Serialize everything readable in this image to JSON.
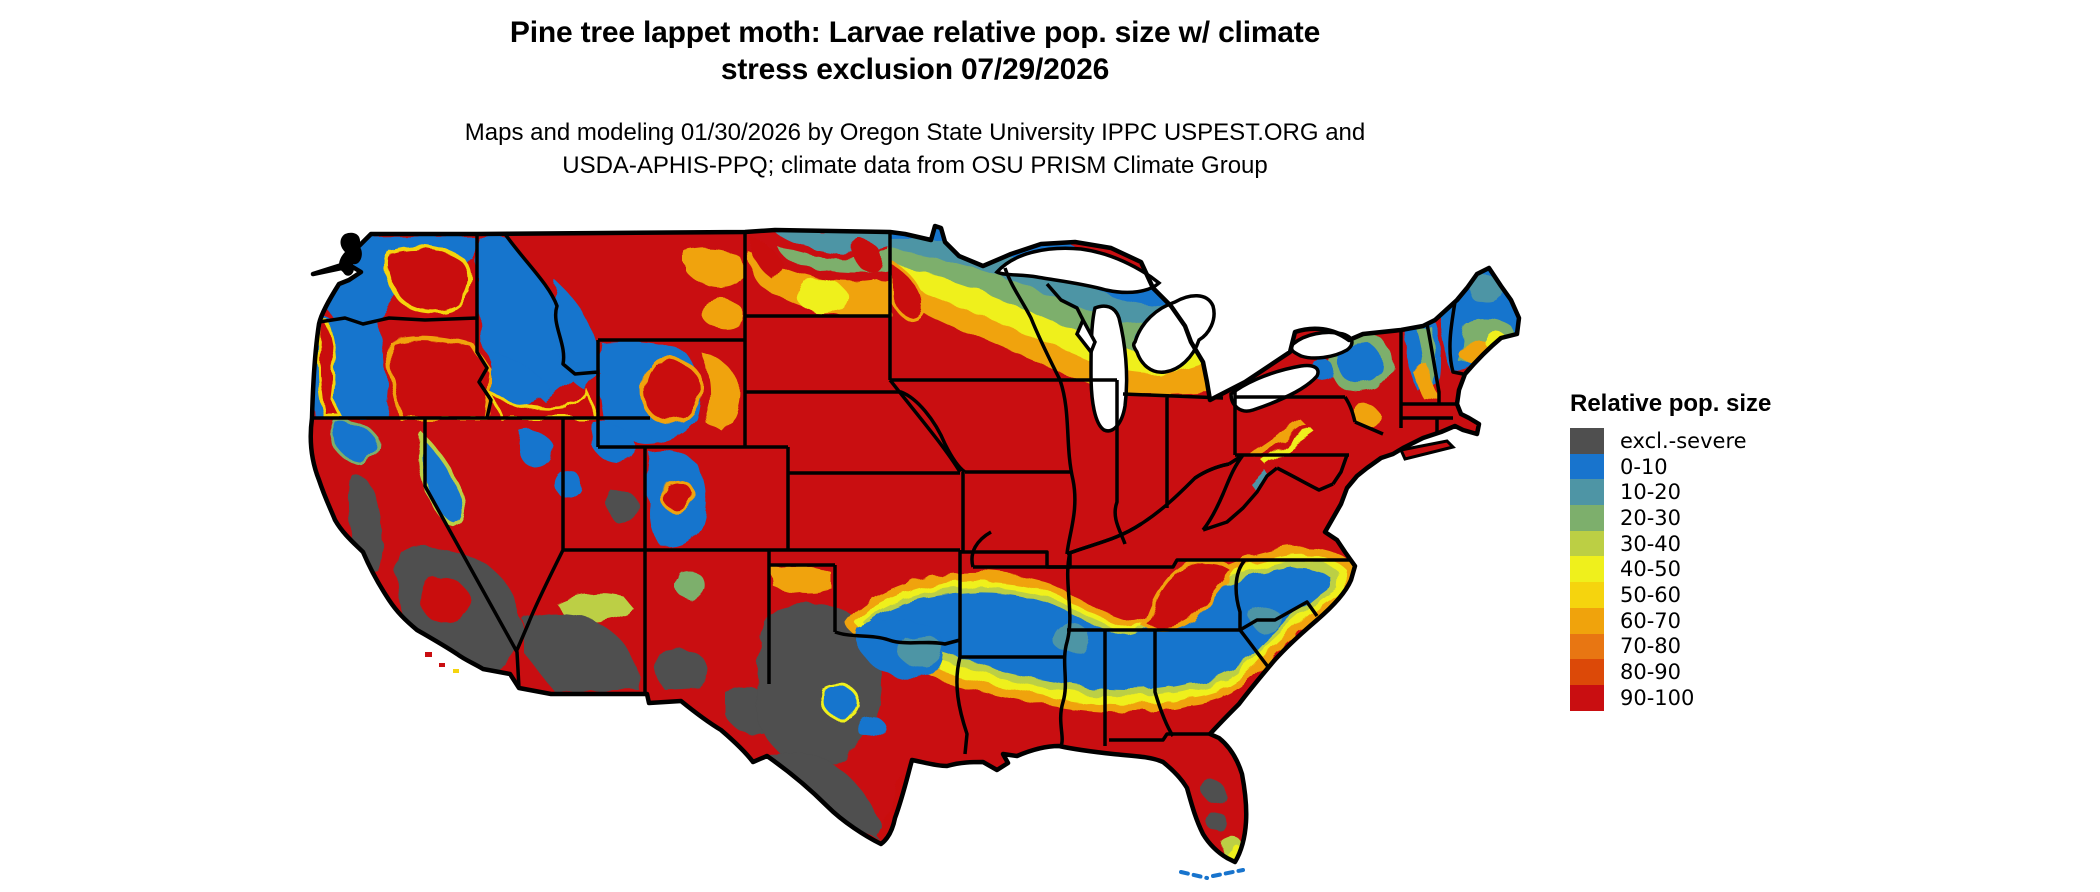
{
  "header": {
    "title_line1": "Pine tree lappet moth: Larvae relative pop. size w/ climate",
    "title_line2": "stress exclusion 07/29/2026",
    "subtitle_line1": "Maps and modeling 01/30/2026 by Oregon State University IPPC USPEST.ORG and",
    "subtitle_line2": "USDA-APHIS-PPQ; climate data from OSU PRISM Climate Group"
  },
  "legend": {
    "title": "Relative pop. size",
    "items": [
      {
        "label": "excl.-severe",
        "color": "#4F4F4F"
      },
      {
        "label": "0-10",
        "color": "#1874CD"
      },
      {
        "label": "10-20",
        "color": "#4E95A5"
      },
      {
        "label": "20-30",
        "color": "#7DAF6C"
      },
      {
        "label": "30-40",
        "color": "#BCCF44"
      },
      {
        "label": "40-50",
        "color": "#EFF01C"
      },
      {
        "label": "50-60",
        "color": "#F5D40E"
      },
      {
        "label": "60-70",
        "color": "#F0A30C"
      },
      {
        "label": "70-80",
        "color": "#E87612"
      },
      {
        "label": "80-90",
        "color": "#DC4908"
      },
      {
        "label": "90-100",
        "color": "#C90E11"
      }
    ]
  },
  "map": {
    "base_class": "90-100",
    "water_color": "#FFFFFF",
    "boundary_color": "#000000"
  }
}
